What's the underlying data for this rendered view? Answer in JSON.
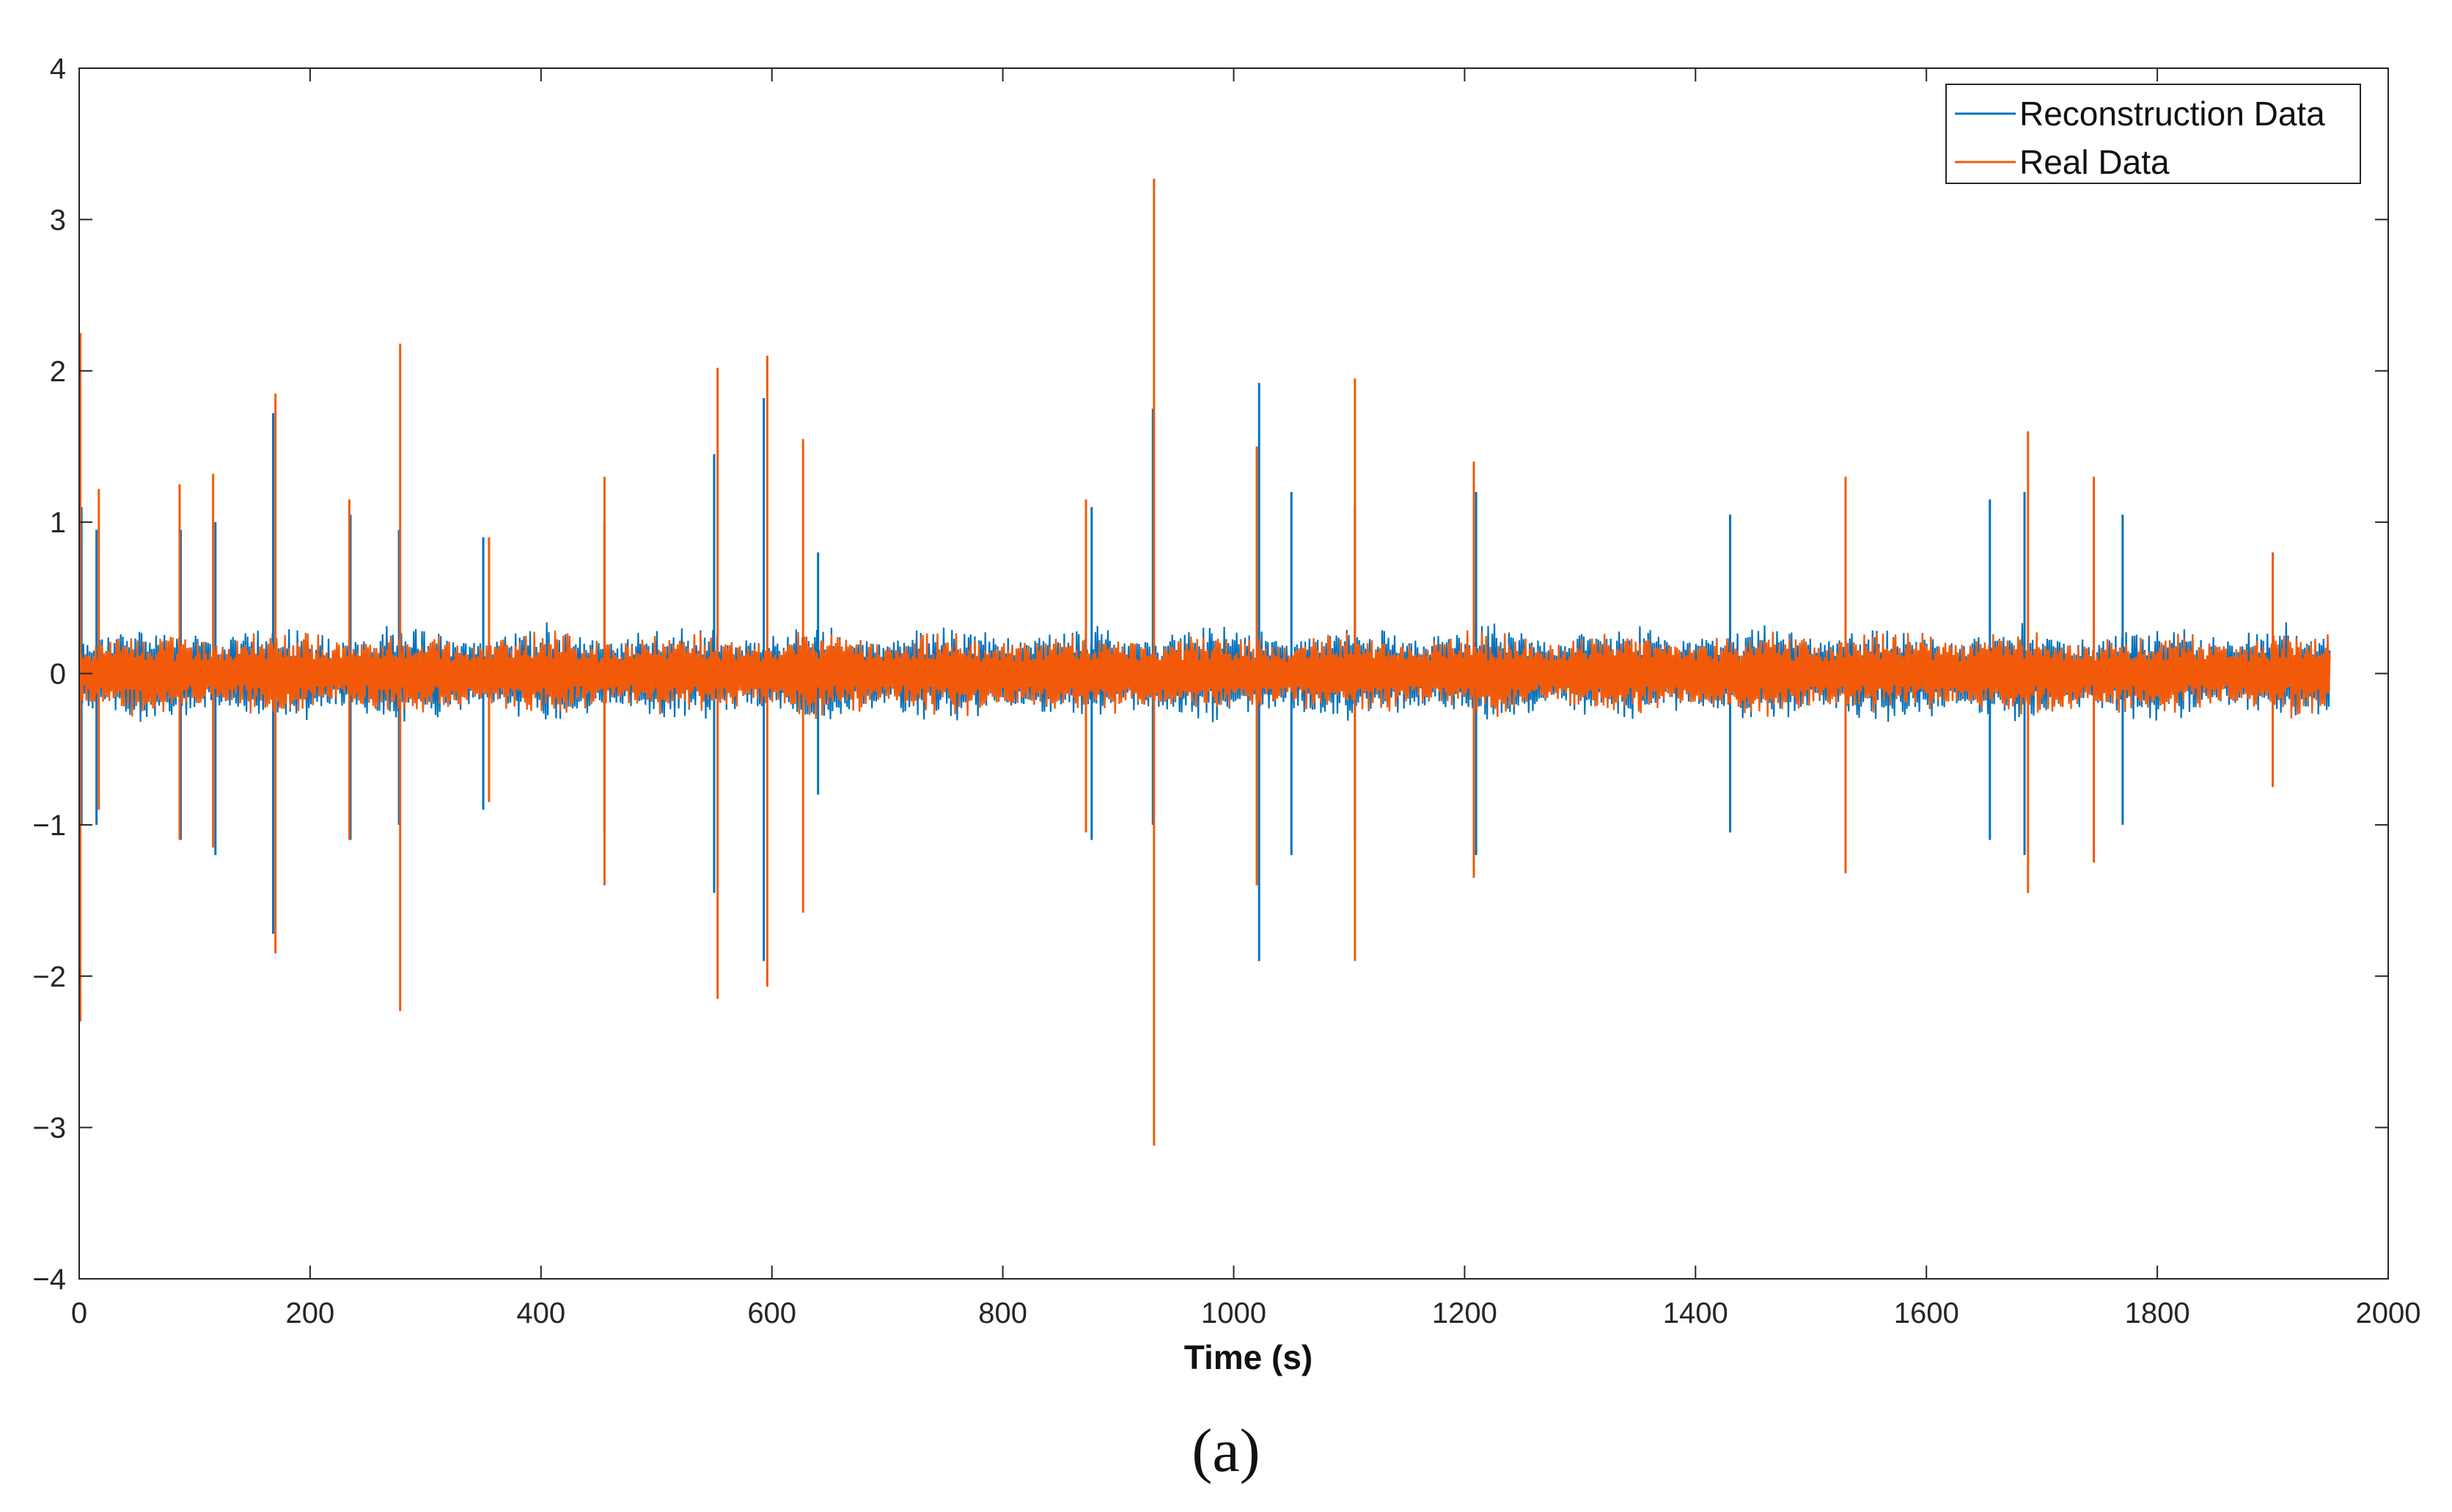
{
  "chart_data": {
    "type": "line",
    "xlabel": "Time (s)",
    "ylabel": "",
    "xlim": [
      0,
      2000
    ],
    "ylim": [
      -4,
      4
    ],
    "xticks": [
      "0",
      "200",
      "400",
      "600",
      "800",
      "1000",
      "1200",
      "1400",
      "1600",
      "1800",
      "2000"
    ],
    "yticks": [
      "4",
      "3",
      "2",
      "1",
      "0",
      "−1",
      "−2",
      "−3",
      "−4"
    ],
    "grid": false,
    "legend_position": "top-right",
    "x_range": [
      0,
      1950
    ],
    "baseline_amplitude": 0.25,
    "series": [
      {
        "name": "Reconstruction Data",
        "color": "#0072BD",
        "peaks": [
          {
            "x": 2,
            "max": 1.1,
            "min": -1.0
          },
          {
            "x": 15,
            "max": 0.95,
            "min": -1.0
          },
          {
            "x": 88,
            "max": 0.95,
            "min": -1.1
          },
          {
            "x": 118,
            "max": 1.0,
            "min": -1.2
          },
          {
            "x": 168,
            "max": 1.72,
            "min": -1.72
          },
          {
            "x": 235,
            "max": 1.05,
            "min": -1.1
          },
          {
            "x": 277,
            "max": 0.95,
            "min": -1.0
          },
          {
            "x": 350,
            "max": 0.9,
            "min": -0.9
          },
          {
            "x": 455,
            "max": 1.0,
            "min": -1.05
          },
          {
            "x": 550,
            "max": 1.45,
            "min": -1.45
          },
          {
            "x": 593,
            "max": 1.82,
            "min": -1.9
          },
          {
            "x": 640,
            "max": 0.8,
            "min": -0.8
          },
          {
            "x": 877,
            "max": 1.1,
            "min": -1.1
          },
          {
            "x": 930,
            "max": 1.75,
            "min": -1.0
          },
          {
            "x": 1022,
            "max": 1.92,
            "min": -1.9
          },
          {
            "x": 1050,
            "max": 1.2,
            "min": -1.2
          },
          {
            "x": 1105,
            "max": 1.1,
            "min": -1.1
          },
          {
            "x": 1210,
            "max": 1.2,
            "min": -1.2
          },
          {
            "x": 1430,
            "max": 1.05,
            "min": -1.05
          },
          {
            "x": 1655,
            "max": 1.15,
            "min": -1.1
          },
          {
            "x": 1685,
            "max": 1.2,
            "min": -1.2
          },
          {
            "x": 1770,
            "max": 1.05,
            "min": -1.0
          }
        ]
      },
      {
        "name": "Real Data",
        "color": "#F25A0A",
        "peaks": [
          {
            "x": 1,
            "max": 2.25,
            "min": -2.3
          },
          {
            "x": 17,
            "max": 1.22,
            "min": -0.9
          },
          {
            "x": 87,
            "max": 1.25,
            "min": -1.1
          },
          {
            "x": 116,
            "max": 1.32,
            "min": -1.15
          },
          {
            "x": 170,
            "max": 1.85,
            "min": -1.85
          },
          {
            "x": 234,
            "max": 1.15,
            "min": -1.1
          },
          {
            "x": 278,
            "max": 2.18,
            "min": -2.23
          },
          {
            "x": 355,
            "max": 0.9,
            "min": -0.85
          },
          {
            "x": 455,
            "max": 1.3,
            "min": -1.4
          },
          {
            "x": 553,
            "max": 2.02,
            "min": -2.15
          },
          {
            "x": 596,
            "max": 2.1,
            "min": -2.07
          },
          {
            "x": 627,
            "max": 1.55,
            "min": -1.58
          },
          {
            "x": 872,
            "max": 1.15,
            "min": -1.05
          },
          {
            "x": 931,
            "max": 3.27,
            "min": -3.12
          },
          {
            "x": 1020,
            "max": 1.5,
            "min": -1.4
          },
          {
            "x": 1105,
            "max": 1.95,
            "min": -1.9
          },
          {
            "x": 1208,
            "max": 1.4,
            "min": -1.35
          },
          {
            "x": 1530,
            "max": 1.3,
            "min": -1.32
          },
          {
            "x": 1688,
            "max": 1.6,
            "min": -1.45
          },
          {
            "x": 1745,
            "max": 1.3,
            "min": -1.25
          },
          {
            "x": 1900,
            "max": 0.8,
            "min": -0.75
          }
        ]
      }
    ]
  },
  "caption": "(a)"
}
